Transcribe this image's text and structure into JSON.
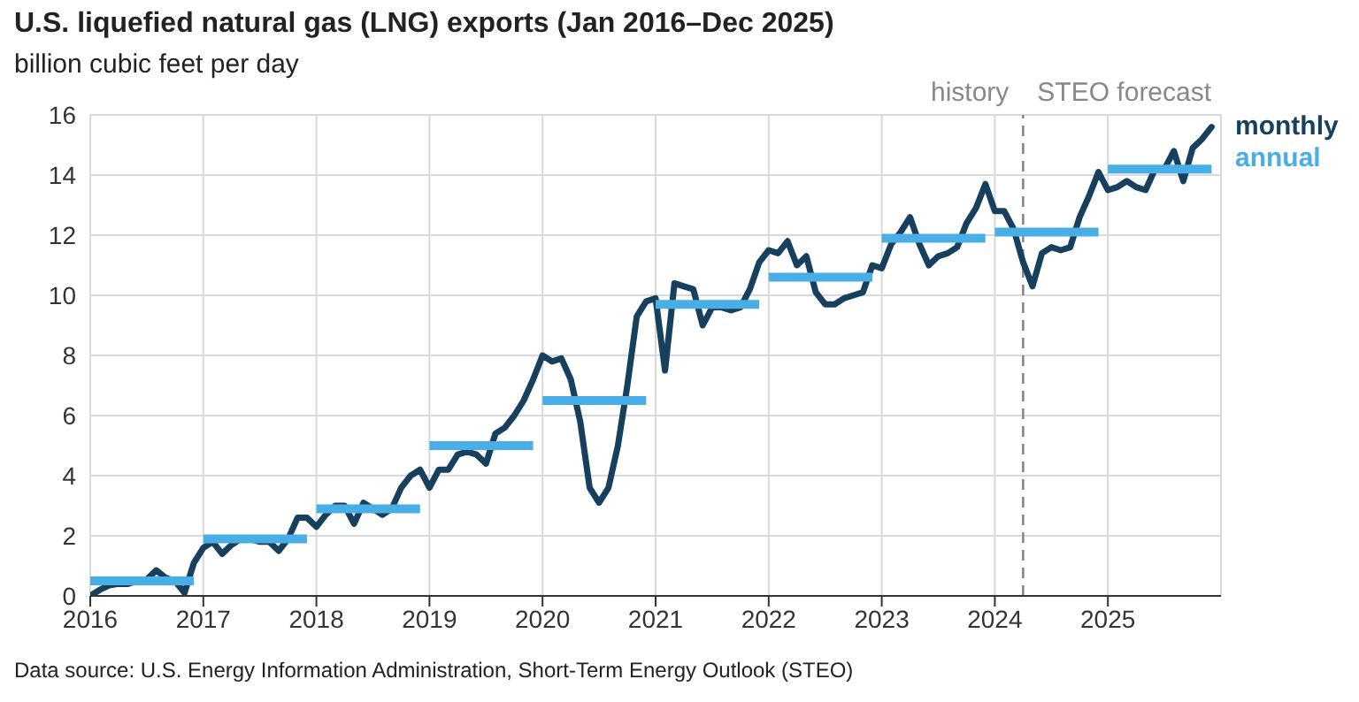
{
  "chart_data": {
    "type": "line",
    "title": "U.S. liquefied natural gas (LNG) exports (Jan 2016–Dec 2025)",
    "subtitle": "billion cubic feet per day",
    "series": [
      {
        "name": "monthly",
        "color": "#17405e",
        "x": [
          "2016-01",
          "2016-02",
          "2016-03",
          "2016-04",
          "2016-05",
          "2016-06",
          "2016-07",
          "2016-08",
          "2016-09",
          "2016-10",
          "2016-11",
          "2016-12",
          "2017-01",
          "2017-02",
          "2017-03",
          "2017-04",
          "2017-05",
          "2017-06",
          "2017-07",
          "2017-08",
          "2017-09",
          "2017-10",
          "2017-11",
          "2017-12",
          "2018-01",
          "2018-02",
          "2018-03",
          "2018-04",
          "2018-05",
          "2018-06",
          "2018-07",
          "2018-08",
          "2018-09",
          "2018-10",
          "2018-11",
          "2018-12",
          "2019-01",
          "2019-02",
          "2019-03",
          "2019-04",
          "2019-05",
          "2019-06",
          "2019-07",
          "2019-08",
          "2019-09",
          "2019-10",
          "2019-11",
          "2019-12",
          "2020-01",
          "2020-02",
          "2020-03",
          "2020-04",
          "2020-05",
          "2020-06",
          "2020-07",
          "2020-08",
          "2020-09",
          "2020-10",
          "2020-11",
          "2020-12",
          "2021-01",
          "2021-02",
          "2021-03",
          "2021-04",
          "2021-05",
          "2021-06",
          "2021-07",
          "2021-08",
          "2021-09",
          "2021-10",
          "2021-11",
          "2021-12",
          "2022-01",
          "2022-02",
          "2022-03",
          "2022-04",
          "2022-05",
          "2022-06",
          "2022-07",
          "2022-08",
          "2022-09",
          "2022-10",
          "2022-11",
          "2022-12",
          "2023-01",
          "2023-02",
          "2023-03",
          "2023-04",
          "2023-05",
          "2023-06",
          "2023-07",
          "2023-08",
          "2023-09",
          "2023-10",
          "2023-11",
          "2023-12",
          "2024-01",
          "2024-02",
          "2024-03",
          "2024-04",
          "2024-05",
          "2024-06",
          "2024-07",
          "2024-08",
          "2024-09",
          "2024-10",
          "2024-11",
          "2024-12",
          "2025-01",
          "2025-02",
          "2025-03",
          "2025-04",
          "2025-05",
          "2025-06",
          "2025-07",
          "2025-08",
          "2025-09",
          "2025-10",
          "2025-11",
          "2025-12"
        ],
        "values": [
          0.0,
          0.2,
          0.35,
          0.4,
          0.4,
          0.5,
          0.55,
          0.85,
          0.6,
          0.5,
          0.1,
          1.1,
          1.6,
          1.8,
          1.4,
          1.7,
          1.9,
          1.9,
          1.8,
          1.8,
          1.5,
          1.9,
          2.6,
          2.6,
          2.3,
          2.7,
          3.0,
          3.0,
          2.4,
          3.1,
          2.9,
          2.7,
          2.9,
          3.6,
          4.0,
          4.2,
          3.6,
          4.2,
          4.2,
          4.7,
          4.8,
          4.7,
          4.4,
          5.4,
          5.6,
          6.0,
          6.5,
          7.2,
          8.0,
          7.8,
          7.9,
          7.2,
          5.8,
          3.6,
          3.1,
          3.6,
          5.0,
          7.0,
          9.3,
          9.8,
          9.9,
          7.5,
          10.4,
          10.3,
          10.2,
          9.0,
          9.6,
          9.6,
          9.5,
          9.6,
          10.2,
          11.1,
          11.5,
          11.4,
          11.8,
          11.0,
          11.3,
          10.1,
          9.7,
          9.7,
          9.9,
          10.0,
          10.1,
          11.0,
          10.9,
          11.7,
          12.1,
          12.6,
          11.7,
          11.0,
          11.3,
          11.4,
          11.6,
          12.4,
          12.9,
          13.7,
          12.8,
          12.8,
          12.2,
          11.1,
          10.3,
          11.4,
          11.6,
          11.5,
          11.6,
          12.6,
          13.3,
          14.1,
          13.5,
          13.6,
          13.8,
          13.6,
          13.5,
          14.2,
          14.2,
          14.8,
          13.8,
          14.9,
          15.2,
          15.6
        ]
      },
      {
        "name": "annual",
        "color": "#4aaee6",
        "x": [
          "2016-01",
          "2016-12",
          "2016-12-20",
          "2017-01",
          "2017-12",
          "2017-12-20",
          "2018-01",
          "2018-12",
          "2018-12-20",
          "2019-01",
          "2019-12",
          "2019-12-20",
          "2020-01",
          "2020-12",
          "2020-12-20",
          "2021-01",
          "2021-12",
          "2021-12-20",
          "2022-01",
          "2022-12",
          "2022-12-20",
          "2023-01",
          "2023-12",
          "2023-12-20",
          "2024-01",
          "2024-12",
          "2024-12-20",
          "2025-01",
          "2025-12"
        ],
        "values": [
          0.5,
          0.5,
          null,
          1.9,
          1.9,
          null,
          2.9,
          2.9,
          null,
          5.0,
          5.0,
          null,
          6.5,
          6.5,
          null,
          9.7,
          9.7,
          null,
          10.6,
          10.6,
          null,
          11.9,
          11.9,
          null,
          12.1,
          12.1,
          null,
          14.2,
          14.2
        ]
      }
    ],
    "xlim": [
      "2016",
      "2026"
    ],
    "xticks": [
      "2016",
      "2017",
      "2018",
      "2019",
      "2020",
      "2021",
      "2022",
      "2023",
      "2024",
      "2025"
    ],
    "ylim": [
      0,
      16
    ],
    "yticks": [
      0,
      2,
      4,
      6,
      8,
      10,
      12,
      14,
      16
    ],
    "grid": true,
    "legend": "top right",
    "marker": "none",
    "line_style": "solid",
    "ref_lines": [
      {
        "axis": "x",
        "value": "2024-04",
        "color": "#808080",
        "line_style": "dashed"
      }
    ],
    "annotations": [
      "history",
      "STEO forecast",
      "Data source: U.S. Energy Information Administration, Short-Term Energy Outlook (STEO)"
    ]
  }
}
